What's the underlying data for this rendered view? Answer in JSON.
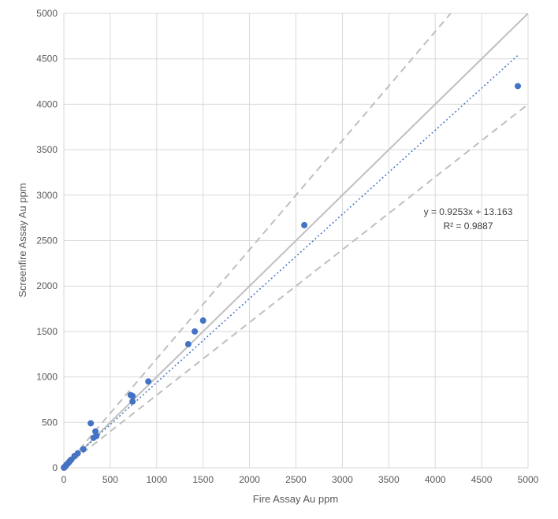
{
  "chart_data": {
    "type": "scatter",
    "xlabel": "Fire Assay Au ppm",
    "ylabel": "Screenfire Assay Au ppm",
    "xlim": [
      0,
      5000
    ],
    "ylim": [
      0,
      5000
    ],
    "xticks": [
      0,
      500,
      1000,
      1500,
      2000,
      2500,
      3000,
      3500,
      4000,
      4500,
      5000
    ],
    "yticks": [
      0,
      500,
      1000,
      1500,
      2000,
      2500,
      3000,
      3500,
      4000,
      4500,
      5000
    ],
    "grid": true,
    "colors": {
      "points": "#4472C4",
      "trendline": "#4472C4",
      "reference": "#BFBFBF",
      "grid": "#D9D9D9"
    },
    "series": [
      {
        "marker": "circle",
        "points": [
          [
            4890,
            4200
          ],
          [
            2590,
            2670
          ],
          [
            1500,
            1620
          ],
          [
            1410,
            1500
          ],
          [
            1340,
            1360
          ],
          [
            910,
            950
          ],
          [
            740,
            790
          ],
          [
            720,
            800
          ],
          [
            740,
            730
          ],
          [
            290,
            490
          ],
          [
            340,
            400
          ],
          [
            350,
            350
          ],
          [
            320,
            330
          ],
          [
            210,
            205
          ],
          [
            150,
            160
          ],
          [
            115,
            130
          ],
          [
            80,
            90
          ],
          [
            65,
            75
          ],
          [
            55,
            60
          ],
          [
            45,
            50
          ],
          [
            35,
            40
          ],
          [
            25,
            30
          ],
          [
            20,
            22
          ],
          [
            15,
            15
          ],
          [
            10,
            10
          ],
          [
            8,
            8
          ],
          [
            5,
            5
          ],
          [
            3,
            3
          ],
          [
            2,
            2
          ],
          [
            1,
            1
          ]
        ]
      }
    ],
    "reference_lines": [
      {
        "kind": "1:1",
        "slope": 1.0,
        "style": "solid"
      },
      {
        "kind": "+20%",
        "slope": 1.2,
        "style": "dashed"
      },
      {
        "kind": "-20%",
        "slope": 0.8,
        "style": "dashed"
      }
    ],
    "trendline": {
      "type": "linear",
      "slope": 0.9253,
      "intercept": 13.163,
      "x_range": [
        0,
        4900
      ],
      "style": "dotted",
      "equation": "y = 0.9253x + 13.163",
      "r2": "R² = 0.9887"
    }
  }
}
